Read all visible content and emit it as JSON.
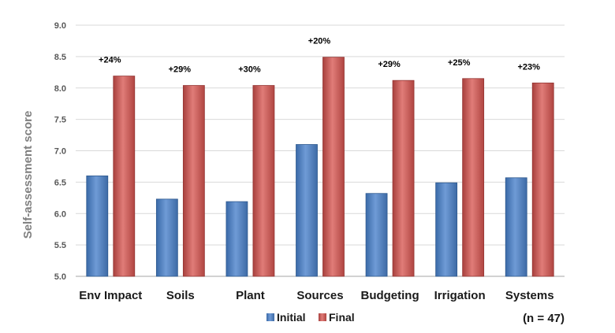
{
  "chart_data": {
    "type": "bar",
    "title": "",
    "xlabel": "",
    "ylabel": "Self-assessment score",
    "ylim": [
      5.0,
      9.0
    ],
    "yticks": [
      "5.0",
      "5.5",
      "6.0",
      "6.5",
      "7.0",
      "7.5",
      "8.0",
      "8.5",
      "9.0"
    ],
    "grid": true,
    "categories": [
      "Env Impact",
      "Soils",
      "Plant",
      "Sources",
      "Budgeting",
      "Irrigation",
      "Systems"
    ],
    "series": [
      {
        "name": "Initial",
        "color": "#4f81bd",
        "values": [
          6.6,
          6.23,
          6.19,
          7.1,
          6.32,
          6.49,
          6.57
        ]
      },
      {
        "name": "Final",
        "color": "#c0504d",
        "values": [
          8.19,
          8.04,
          8.04,
          8.49,
          8.12,
          8.15,
          8.08
        ]
      }
    ],
    "annotations": [
      "+24%",
      "+29%",
      "+30%",
      "+20%",
      "+29%",
      "+25%",
      "+23%"
    ],
    "legend_position": "bottom",
    "note": "(n = 47)"
  }
}
